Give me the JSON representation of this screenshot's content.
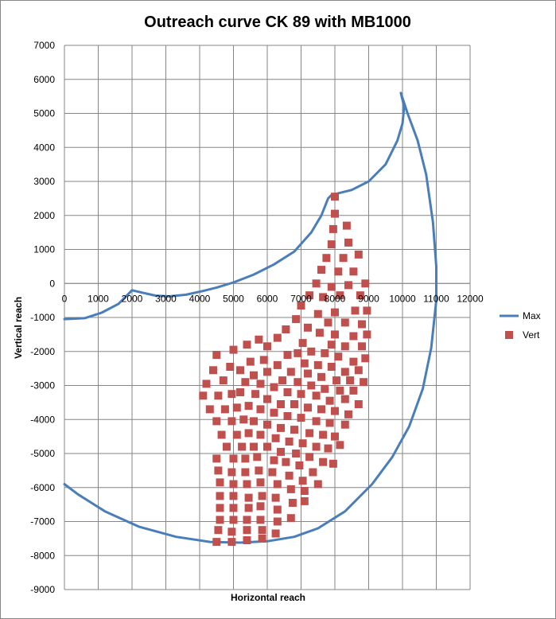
{
  "chart_data": {
    "type": "scatter",
    "title": "Outreach curve CK 89 with MB1000",
    "xlabel": "Horizontal reach",
    "ylabel": "Vertical reach",
    "xlim": [
      0,
      12000
    ],
    "ylim": [
      -9000,
      7000
    ],
    "x_ticks": [
      0,
      1000,
      2000,
      3000,
      4000,
      5000,
      6000,
      7000,
      8000,
      9000,
      10000,
      11000,
      12000
    ],
    "y_ticks": [
      7000,
      6000,
      5000,
      4000,
      3000,
      2000,
      1000,
      0,
      -1000,
      -2000,
      -3000,
      -4000,
      -5000,
      -6000,
      -7000,
      -8000,
      -9000
    ],
    "grid": true,
    "legend_position": "right",
    "colors": {
      "max": "#4a7ebb",
      "vert": "#c0504d",
      "grid": "#868686"
    },
    "series": [
      {
        "name": "Max",
        "kind": "line",
        "points": [
          [
            0,
            -1050
          ],
          [
            600,
            -1020
          ],
          [
            1100,
            -860
          ],
          [
            1600,
            -600
          ],
          [
            2000,
            -200
          ],
          [
            2300,
            -270
          ],
          [
            2700,
            -360
          ],
          [
            3100,
            -380
          ],
          [
            3600,
            -330
          ],
          [
            4100,
            -220
          ],
          [
            4500,
            -120
          ],
          [
            5000,
            30
          ],
          [
            5600,
            260
          ],
          [
            6200,
            560
          ],
          [
            6800,
            940
          ],
          [
            7300,
            1500
          ],
          [
            7600,
            2000
          ],
          [
            7800,
            2500
          ],
          [
            7900,
            2600
          ],
          [
            8500,
            2750
          ],
          [
            9000,
            3000
          ],
          [
            9500,
            3500
          ],
          [
            9850,
            4200
          ],
          [
            10000,
            4700
          ],
          [
            10050,
            5200
          ],
          [
            9950,
            5600
          ],
          [
            10150,
            5000
          ],
          [
            10450,
            4200
          ],
          [
            10700,
            3200
          ],
          [
            10900,
            1800
          ],
          [
            11000,
            500
          ],
          [
            11000,
            -500
          ],
          [
            10850,
            -1900
          ],
          [
            10600,
            -3100
          ],
          [
            10200,
            -4200
          ],
          [
            9700,
            -5100
          ],
          [
            9100,
            -5900
          ],
          [
            8300,
            -6700
          ],
          [
            7500,
            -7200
          ],
          [
            6800,
            -7450
          ],
          [
            6000,
            -7580
          ],
          [
            5200,
            -7620
          ],
          [
            4300,
            -7600
          ],
          [
            3300,
            -7450
          ],
          [
            2200,
            -7150
          ],
          [
            1200,
            -6700
          ],
          [
            400,
            -6200
          ],
          [
            0,
            -5900
          ]
        ]
      },
      {
        "name": "Vert",
        "kind": "scatter",
        "points": [
          [
            8000,
            2550
          ],
          [
            8000,
            2050
          ],
          [
            8350,
            1700
          ],
          [
            7950,
            1600
          ],
          [
            8400,
            1200
          ],
          [
            7900,
            1150
          ],
          [
            8700,
            850
          ],
          [
            7750,
            750
          ],
          [
            8250,
            750
          ],
          [
            8550,
            350
          ],
          [
            8100,
            350
          ],
          [
            7600,
            400
          ],
          [
            8900,
            0
          ],
          [
            8400,
            -50
          ],
          [
            7450,
            0
          ],
          [
            7900,
            -100
          ],
          [
            8750,
            -350
          ],
          [
            8150,
            -350
          ],
          [
            7250,
            -350
          ],
          [
            7650,
            -400
          ],
          [
            8950,
            -800
          ],
          [
            8600,
            -800
          ],
          [
            8000,
            -850
          ],
          [
            7000,
            -650
          ],
          [
            7500,
            -900
          ],
          [
            8300,
            -1150
          ],
          [
            8800,
            -1200
          ],
          [
            7800,
            -1150
          ],
          [
            6850,
            -1050
          ],
          [
            7200,
            -1300
          ],
          [
            8950,
            -1500
          ],
          [
            8550,
            -1550
          ],
          [
            8000,
            -1500
          ],
          [
            7550,
            -1450
          ],
          [
            6550,
            -1350
          ],
          [
            7050,
            -1750
          ],
          [
            7900,
            -1800
          ],
          [
            8300,
            -1850
          ],
          [
            8800,
            -1850
          ],
          [
            6300,
            -1600
          ],
          [
            6900,
            -2050
          ],
          [
            7300,
            -2000
          ],
          [
            7700,
            -2050
          ],
          [
            8100,
            -2150
          ],
          [
            8550,
            -2300
          ],
          [
            8900,
            -2200
          ],
          [
            6000,
            -1850
          ],
          [
            5750,
            -1650
          ],
          [
            5000,
            -1950
          ],
          [
            5400,
            -1800
          ],
          [
            4500,
            -2100
          ],
          [
            6600,
            -2100
          ],
          [
            7100,
            -2350
          ],
          [
            7500,
            -2400
          ],
          [
            7900,
            -2450
          ],
          [
            8300,
            -2600
          ],
          [
            8700,
            -2550
          ],
          [
            6300,
            -2400
          ],
          [
            5900,
            -2250
          ],
          [
            5500,
            -2300
          ],
          [
            4900,
            -2450
          ],
          [
            4400,
            -2550
          ],
          [
            6700,
            -2600
          ],
          [
            7200,
            -2650
          ],
          [
            7600,
            -2750
          ],
          [
            8050,
            -2850
          ],
          [
            8850,
            -2900
          ],
          [
            8450,
            -2850
          ],
          [
            6000,
            -2600
          ],
          [
            5600,
            -2700
          ],
          [
            5200,
            -2550
          ],
          [
            4700,
            -2850
          ],
          [
            4200,
            -2950
          ],
          [
            6450,
            -2850
          ],
          [
            6900,
            -2900
          ],
          [
            7300,
            -3000
          ],
          [
            7700,
            -3100
          ],
          [
            8150,
            -3150
          ],
          [
            8550,
            -3150
          ],
          [
            5800,
            -2950
          ],
          [
            5350,
            -2900
          ],
          [
            4950,
            -3250
          ],
          [
            4550,
            -3300
          ],
          [
            4100,
            -3300
          ],
          [
            6200,
            -3050
          ],
          [
            6600,
            -3200
          ],
          [
            7000,
            -3250
          ],
          [
            7450,
            -3300
          ],
          [
            7850,
            -3450
          ],
          [
            8300,
            -3400
          ],
          [
            8700,
            -3550
          ],
          [
            5650,
            -3250
          ],
          [
            5200,
            -3200
          ],
          [
            4300,
            -3700
          ],
          [
            4750,
            -3700
          ],
          [
            6000,
            -3400
          ],
          [
            6400,
            -3550
          ],
          [
            6800,
            -3550
          ],
          [
            7200,
            -3650
          ],
          [
            7600,
            -3700
          ],
          [
            8000,
            -3750
          ],
          [
            8400,
            -3850
          ],
          [
            5450,
            -3600
          ],
          [
            5100,
            -3650
          ],
          [
            4500,
            -4050
          ],
          [
            4950,
            -4050
          ],
          [
            5800,
            -3700
          ],
          [
            6200,
            -3800
          ],
          [
            6600,
            -3900
          ],
          [
            7000,
            -3950
          ],
          [
            7450,
            -4050
          ],
          [
            7850,
            -4100
          ],
          [
            8300,
            -4150
          ],
          [
            5300,
            -4000
          ],
          [
            4650,
            -4450
          ],
          [
            5100,
            -4450
          ],
          [
            5600,
            -4050
          ],
          [
            6000,
            -4150
          ],
          [
            6400,
            -4250
          ],
          [
            6800,
            -4300
          ],
          [
            7250,
            -4400
          ],
          [
            7650,
            -4450
          ],
          [
            8000,
            -4500
          ],
          [
            5450,
            -4400
          ],
          [
            4800,
            -4800
          ],
          [
            5250,
            -4800
          ],
          [
            5800,
            -4450
          ],
          [
            6250,
            -4550
          ],
          [
            6650,
            -4650
          ],
          [
            7050,
            -4700
          ],
          [
            7450,
            -4800
          ],
          [
            7800,
            -4850
          ],
          [
            8150,
            -4750
          ],
          [
            5600,
            -4800
          ],
          [
            5000,
            -5150
          ],
          [
            4500,
            -5150
          ],
          [
            6000,
            -4800
          ],
          [
            6400,
            -4950
          ],
          [
            6850,
            -5000
          ],
          [
            7250,
            -5100
          ],
          [
            7650,
            -5250
          ],
          [
            7950,
            -5300
          ],
          [
            5350,
            -5150
          ],
          [
            5700,
            -5100
          ],
          [
            4550,
            -5500
          ],
          [
            4950,
            -5550
          ],
          [
            6200,
            -5200
          ],
          [
            6550,
            -5250
          ],
          [
            6950,
            -5350
          ],
          [
            7350,
            -5550
          ],
          [
            5350,
            -5550
          ],
          [
            5750,
            -5500
          ],
          [
            4600,
            -5850
          ],
          [
            5000,
            -5900
          ],
          [
            6150,
            -5550
          ],
          [
            6650,
            -5650
          ],
          [
            7050,
            -5800
          ],
          [
            7500,
            -5900
          ],
          [
            5400,
            -5900
          ],
          [
            5800,
            -5850
          ],
          [
            4600,
            -6250
          ],
          [
            5000,
            -6250
          ],
          [
            6300,
            -5900
          ],
          [
            6700,
            -6050
          ],
          [
            7100,
            -6100
          ],
          [
            5450,
            -6300
          ],
          [
            5850,
            -6250
          ],
          [
            6250,
            -6300
          ],
          [
            4600,
            -6600
          ],
          [
            5000,
            -6600
          ],
          [
            7100,
            -6400
          ],
          [
            6750,
            -6450
          ],
          [
            5450,
            -6600
          ],
          [
            5800,
            -6550
          ],
          [
            6300,
            -6650
          ],
          [
            4600,
            -6950
          ],
          [
            5000,
            -6950
          ],
          [
            6700,
            -6900
          ],
          [
            5400,
            -6950
          ],
          [
            5800,
            -6950
          ],
          [
            6300,
            -7000
          ],
          [
            4550,
            -7250
          ],
          [
            4950,
            -7300
          ],
          [
            5400,
            -7250
          ],
          [
            5850,
            -7250
          ],
          [
            6250,
            -7350
          ],
          [
            4500,
            -7600
          ],
          [
            4950,
            -7600
          ],
          [
            5400,
            -7550
          ],
          [
            5850,
            -7500
          ]
        ]
      }
    ]
  }
}
